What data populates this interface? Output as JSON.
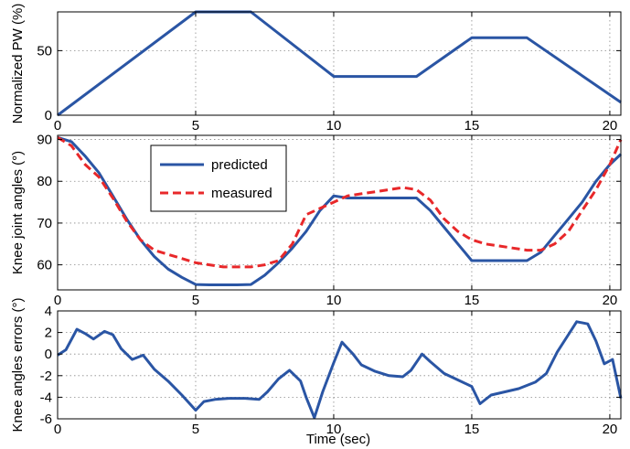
{
  "figure": {
    "xlabel": "Time (sec)"
  },
  "chart_data": [
    {
      "type": "line",
      "ylabel": "Normalized PW (%)",
      "xlim": [
        0,
        20.4
      ],
      "ylim": [
        0,
        80
      ],
      "xticks": [
        0,
        5,
        10,
        15,
        20
      ],
      "yticks": [
        0,
        50
      ],
      "grid": true,
      "series": [
        {
          "color": "#2a55a4",
          "style": "solid",
          "x": [
            0,
            5,
            7,
            10,
            13,
            15,
            17,
            20.4
          ],
          "y": [
            0,
            80,
            80,
            30,
            30,
            60,
            60,
            10
          ]
        }
      ]
    },
    {
      "type": "line",
      "ylabel": "Knee joint angles (°)",
      "xlim": [
        0,
        20.4
      ],
      "ylim": [
        54,
        91
      ],
      "xticks": [
        0,
        5,
        10,
        15,
        20
      ],
      "yticks": [
        60,
        70,
        80,
        90
      ],
      "grid": true,
      "legend": "top-left",
      "series": [
        {
          "name": "predicted",
          "color": "#2a55a4",
          "style": "solid",
          "x": [
            0,
            0.5,
            1,
            1.5,
            2,
            2.5,
            3,
            3.5,
            4,
            4.5,
            5,
            5.5,
            6,
            6.5,
            7,
            7.5,
            8,
            8.5,
            9,
            9.5,
            10,
            10.5,
            11,
            11.5,
            12,
            12.5,
            13,
            13.5,
            14,
            14.5,
            15,
            15.5,
            16,
            16.5,
            17,
            17.5,
            18,
            18.5,
            19,
            19.5,
            20,
            20.4
          ],
          "y": [
            90.5,
            89.5,
            86,
            82,
            76.5,
            71,
            66,
            62,
            59,
            57,
            55.3,
            55.2,
            55.2,
            55.2,
            55.3,
            57.5,
            60.5,
            64,
            68,
            73,
            76.5,
            76,
            76,
            76,
            76,
            76,
            76,
            73,
            69,
            65,
            61,
            61,
            61,
            61,
            61,
            63,
            67,
            71,
            75,
            80,
            84,
            86.5
          ]
        },
        {
          "name": "measured",
          "color": "#e8282a",
          "style": "dashed",
          "x": [
            0,
            0.5,
            1,
            1.5,
            2,
            2.5,
            3,
            3.5,
            4,
            4.5,
            5,
            5.5,
            6,
            6.5,
            7,
            7.5,
            8,
            8.5,
            9,
            9.5,
            10,
            10.5,
            11,
            11.5,
            12,
            12.5,
            13,
            13.5,
            14,
            14.5,
            15,
            15.5,
            16,
            16.5,
            17,
            17.5,
            18,
            18.5,
            19,
            19.5,
            20,
            20.4
          ],
          "y": [
            90.5,
            88.5,
            84,
            81,
            76,
            70.5,
            66,
            63.5,
            62.5,
            61.5,
            60.5,
            60,
            59.5,
            59.5,
            59.5,
            60,
            61,
            65,
            72,
            73.5,
            75,
            76.5,
            77,
            77.5,
            78,
            78.5,
            78,
            75.5,
            71,
            68,
            66,
            65,
            64.5,
            64,
            63.5,
            63.5,
            65,
            68,
            73,
            78,
            84,
            90
          ]
        }
      ]
    },
    {
      "type": "line",
      "ylabel": "Knee angles errors (°)",
      "xlim": [
        0,
        20.4
      ],
      "ylim": [
        -6,
        4
      ],
      "xticks": [
        0,
        5,
        10,
        15,
        20
      ],
      "yticks": [
        -6,
        -4,
        -2,
        0,
        2,
        4
      ],
      "grid": true,
      "series": [
        {
          "color": "#2a55a4",
          "style": "solid",
          "x": [
            0,
            0.3,
            0.7,
            1,
            1.3,
            1.7,
            2,
            2.3,
            2.7,
            3.1,
            3.5,
            4,
            4.5,
            5,
            5.3,
            5.7,
            6.2,
            6.8,
            7.3,
            7.6,
            8,
            8.4,
            8.8,
            9,
            9.3,
            9.6,
            10,
            10.3,
            10.7,
            11,
            11.5,
            12,
            12.5,
            12.8,
            13.2,
            13.5,
            14,
            14.5,
            15,
            15.3,
            15.7,
            16.2,
            16.7,
            17.3,
            17.7,
            18.1,
            18.5,
            18.8,
            19.2,
            19.5,
            19.8,
            20.1,
            20.4
          ],
          "y": [
            -0.1,
            0.4,
            2.3,
            1.9,
            1.4,
            2.1,
            1.8,
            0.5,
            -0.5,
            -0.1,
            -1.4,
            -2.5,
            -3.8,
            -5.2,
            -4.4,
            -4.2,
            -4.1,
            -4.1,
            -4.2,
            -3.5,
            -2.3,
            -1.5,
            -2.5,
            -4.0,
            -5.9,
            -3.5,
            -0.8,
            1.1,
            0.0,
            -1.0,
            -1.6,
            -2.0,
            -2.1,
            -1.5,
            0.0,
            -0.7,
            -1.8,
            -2.4,
            -3.0,
            -4.6,
            -3.8,
            -3.5,
            -3.2,
            -2.6,
            -1.8,
            0.2,
            1.8,
            3.0,
            2.8,
            1.2,
            -0.9,
            -0.5,
            -4.1
          ]
        }
      ]
    }
  ]
}
